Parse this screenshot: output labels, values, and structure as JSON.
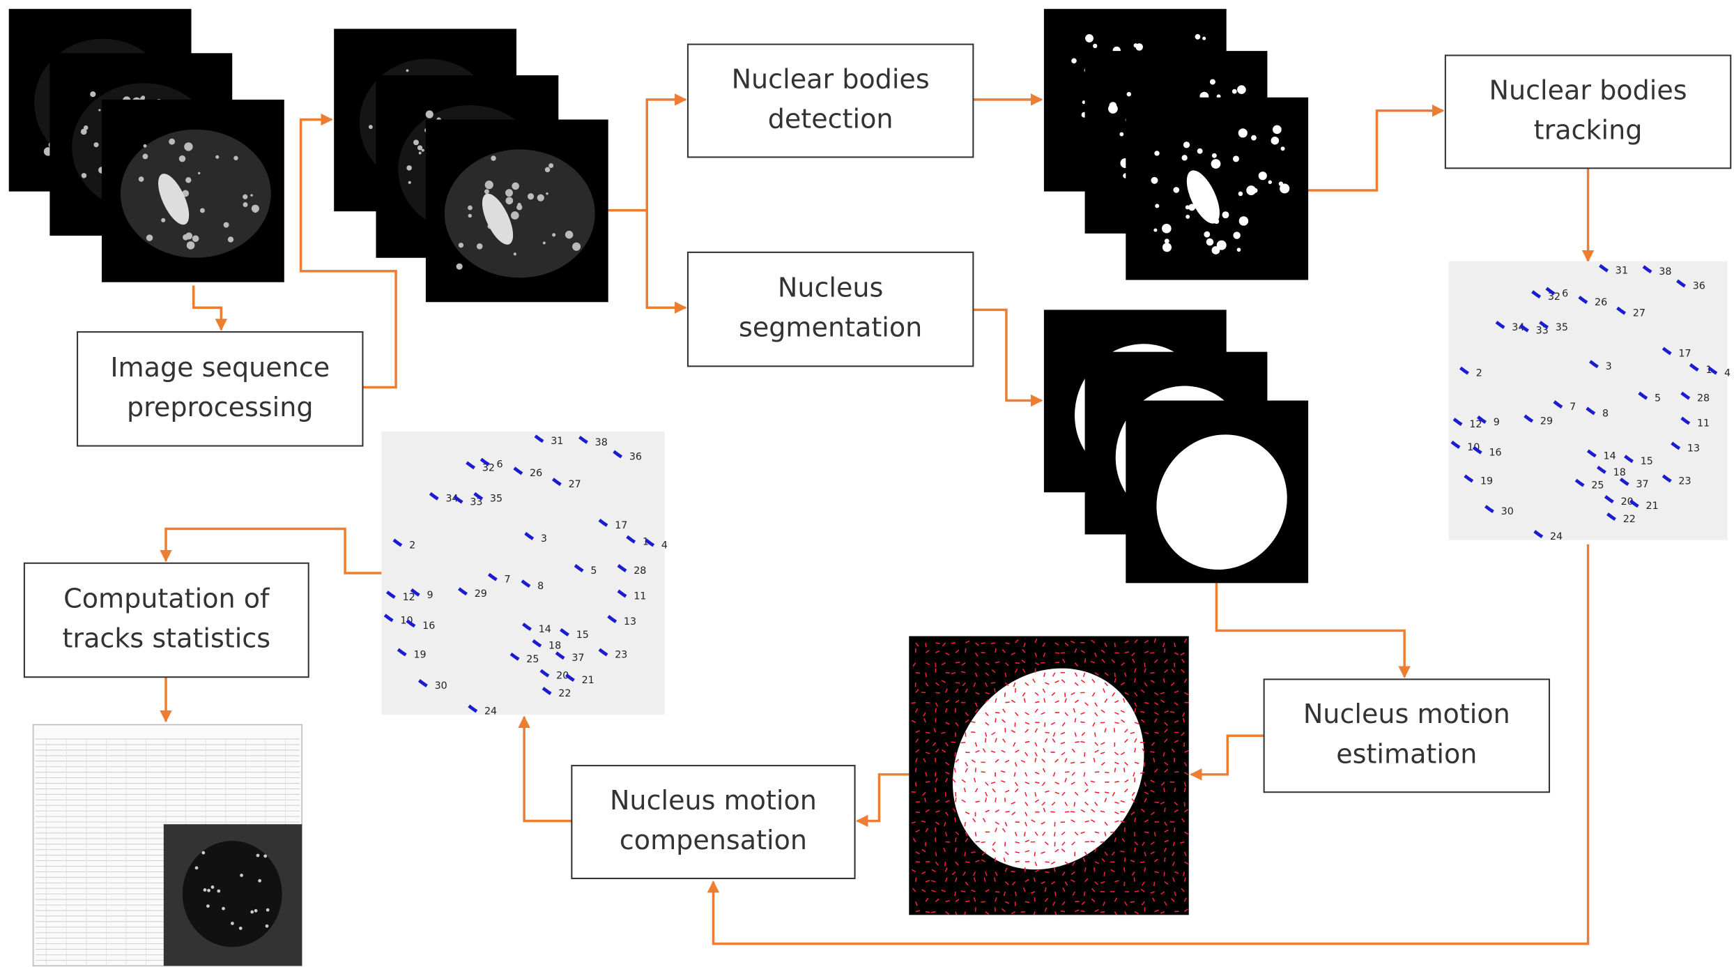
{
  "nodes": [
    {
      "id": "preprocessing",
      "lines": [
        "Image sequence",
        "preprocessing"
      ]
    },
    {
      "id": "detection",
      "lines": [
        "Nuclear bodies",
        "detection"
      ]
    },
    {
      "id": "segmentation",
      "lines": [
        "Nucleus",
        "segmentation"
      ]
    },
    {
      "id": "tracking",
      "lines": [
        "Nuclear bodies",
        "tracking"
      ]
    },
    {
      "id": "estimation",
      "lines": [
        "Nucleus motion",
        "estimation"
      ]
    },
    {
      "id": "compensation",
      "lines": [
        "Nucleus motion",
        "compensation"
      ]
    },
    {
      "id": "statistics",
      "lines": [
        "Computation of",
        "tracks statistics"
      ]
    }
  ],
  "tracks": {
    "labels": [
      "31",
      "38",
      "36",
      "32",
      "6",
      "26",
      "27",
      "34",
      "33",
      "35",
      "17",
      "2",
      "3",
      "1",
      "4",
      "5",
      "28",
      "12",
      "9",
      "29",
      "7",
      "8",
      "11",
      "10",
      "16",
      "13",
      "14",
      "15",
      "19",
      "18",
      "37",
      "25",
      "23",
      "20",
      "21",
      "22",
      "30",
      "24"
    ]
  }
}
